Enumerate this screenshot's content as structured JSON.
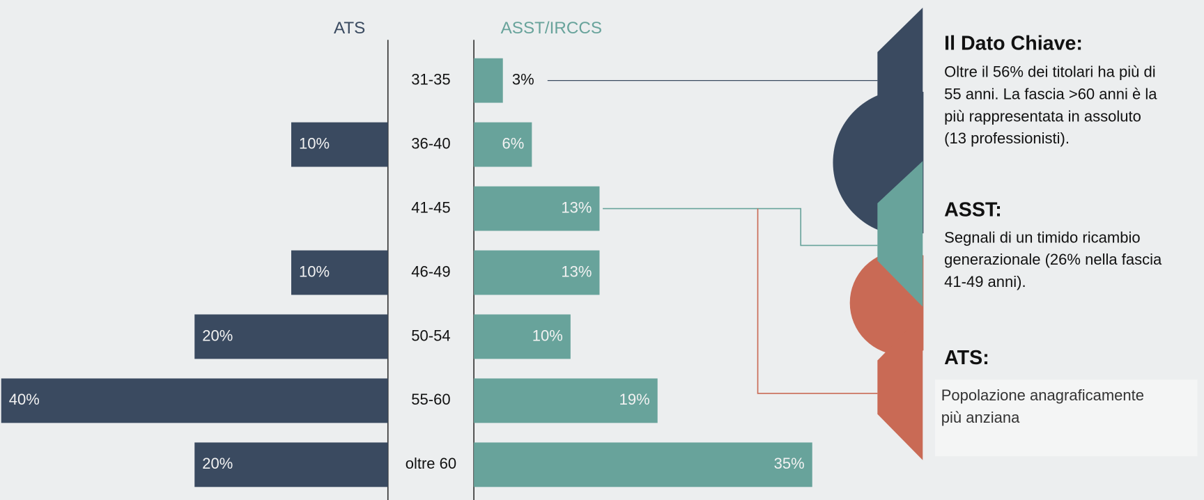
{
  "chart_data": {
    "type": "butterfly-bar",
    "categories": [
      "31-35",
      "36-40",
      "41-45",
      "46-49",
      "50-54",
      "55-60",
      "oltre 60"
    ],
    "series": [
      {
        "name": "ATS",
        "color": "#3a4a60",
        "values": [
          null,
          10,
          null,
          10,
          20,
          40,
          20
        ],
        "value_labels": [
          null,
          "10%",
          null,
          "10%",
          "20%",
          "40%",
          "20%"
        ]
      },
      {
        "name": "ASST/IRCCS",
        "color": "#68a39b",
        "values": [
          3,
          6,
          13,
          13,
          10,
          19,
          35
        ],
        "value_labels": [
          "3%",
          "6%",
          "13%",
          "13%",
          "10%",
          "19%",
          "35%"
        ]
      }
    ]
  },
  "panel": {
    "key": {
      "title": "Il Dato Chiave:",
      "lines": [
        "Oltre il 56% dei titolari ha più di",
        "55 anni. La fascia >60 anni è la",
        "più rappresentata in assoluto",
        "(13 professionisti)."
      ]
    },
    "asst": {
      "title": "ASST:",
      "lines": [
        "Segnali di un timido ricambio",
        "generazionale (26% nella fascia",
        "41-49 anni)."
      ]
    },
    "ats": {
      "title": "ATS:",
      "lines": [
        "Popolazione anagraficamente",
        "più anziana"
      ]
    }
  }
}
